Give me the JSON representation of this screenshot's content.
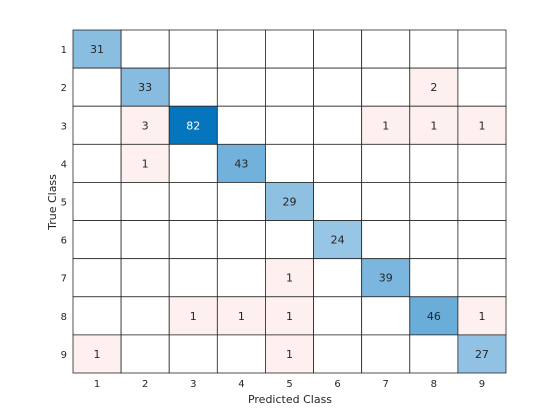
{
  "chart_data": {
    "type": "heatmap",
    "title": "",
    "xlabel": "Predicted Class",
    "ylabel": "True Class",
    "x_categories": [
      "1",
      "2",
      "3",
      "4",
      "5",
      "6",
      "7",
      "8",
      "9"
    ],
    "y_categories": [
      "1",
      "2",
      "3",
      "4",
      "5",
      "6",
      "7",
      "8",
      "9"
    ],
    "matrix": [
      [
        31,
        0,
        0,
        0,
        0,
        0,
        0,
        0,
        0
      ],
      [
        0,
        33,
        0,
        0,
        0,
        0,
        0,
        2,
        0
      ],
      [
        0,
        3,
        82,
        0,
        0,
        0,
        1,
        1,
        1
      ],
      [
        0,
        1,
        0,
        43,
        0,
        0,
        0,
        0,
        0
      ],
      [
        0,
        0,
        0,
        0,
        29,
        0,
        0,
        0,
        0
      ],
      [
        0,
        0,
        0,
        0,
        0,
        24,
        0,
        0,
        0
      ],
      [
        0,
        0,
        0,
        0,
        1,
        0,
        39,
        0,
        0
      ],
      [
        0,
        0,
        1,
        1,
        1,
        0,
        0,
        46,
        1
      ],
      [
        1,
        0,
        0,
        0,
        1,
        0,
        0,
        0,
        27
      ]
    ],
    "diagonal_colors": {
      "low": "#e8f2fa",
      "high": "#0072bd"
    },
    "off_diagonal_color": "#fdf0ee",
    "grid_color": "#262626",
    "grid": true
  }
}
